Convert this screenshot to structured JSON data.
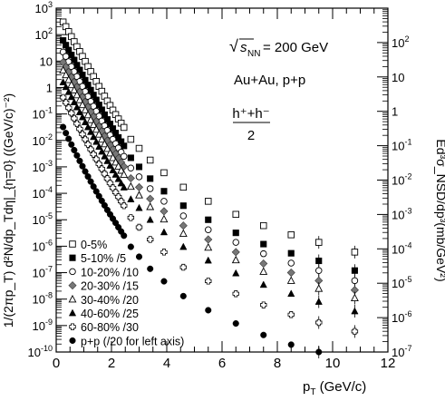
{
  "chart_data": {
    "type": "scatter",
    "x_axis": {
      "label_main": "p",
      "label_sub": "T",
      "label_unit": " (GeV/c)",
      "range": [
        0,
        12
      ],
      "ticks": [
        "0",
        "2",
        "4",
        "6",
        "8",
        "10",
        "12"
      ],
      "scale": "linear"
    },
    "y_axis_left": {
      "label": "1/(2πp_T) d²N/dp_Tdη|_{η=0} ((GeV/c)⁻²)",
      "scale": "log",
      "range": [
        1e-10,
        1000
      ],
      "ticks": [
        {
          "value": 1000,
          "base": "10",
          "exp": "3"
        },
        {
          "value": 100,
          "base": "10",
          "exp": "2"
        },
        {
          "value": 10,
          "base": "10",
          "exp": ""
        },
        {
          "value": 1,
          "base": "1",
          "exp": ""
        },
        {
          "value": 0.1,
          "base": "10",
          "exp": "-1"
        },
        {
          "value": 0.01,
          "base": "10",
          "exp": "-2"
        },
        {
          "value": 0.001,
          "base": "10",
          "exp": "-3"
        },
        {
          "value": 0.0001,
          "base": "10",
          "exp": "-4"
        },
        {
          "value": 1e-05,
          "base": "10",
          "exp": "-5"
        },
        {
          "value": 1e-06,
          "base": "10",
          "exp": "-6"
        },
        {
          "value": 1e-07,
          "base": "10",
          "exp": "-7"
        },
        {
          "value": 1e-08,
          "base": "10",
          "exp": "-8"
        },
        {
          "value": 1e-09,
          "base": "10",
          "exp": "-9"
        },
        {
          "value": 1e-10,
          "base": "10",
          "exp": "-10"
        }
      ]
    },
    "y_axis_right": {
      "label": "Ed³σ_NSD/dp³(mb/GeV²)",
      "scale": "log",
      "range": [
        1e-07,
        1000
      ],
      "ticks": [
        {
          "value": 100,
          "base": "10",
          "exp": "2"
        },
        {
          "value": 10,
          "base": "10",
          "exp": ""
        },
        {
          "value": 1,
          "base": "1",
          "exp": ""
        },
        {
          "value": 0.1,
          "base": "10",
          "exp": "-1"
        },
        {
          "value": 0.01,
          "base": "10",
          "exp": "-2"
        },
        {
          "value": 0.001,
          "base": "10",
          "exp": "-3"
        },
        {
          "value": 0.0001,
          "base": "10",
          "exp": "-4"
        },
        {
          "value": 1e-05,
          "base": "10",
          "exp": "-5"
        },
        {
          "value": 1e-06,
          "base": "10",
          "exp": "-6"
        },
        {
          "value": 1e-07,
          "base": "10",
          "exp": "-7"
        }
      ]
    },
    "annotations": {
      "energy_sqrt": "√",
      "energy_s": "s",
      "energy_sub": "NN",
      "energy_value": " = 200 GeV",
      "systems": "Au+Au, p+p",
      "charge_numerator": "h⁺+h⁻",
      "charge_denominator": "2"
    },
    "legend_position": "bottom-left",
    "series": [
      {
        "name": "0-5%",
        "marker": "open-square",
        "scale_factor": 1,
        "x": [
          0.25,
          0.35,
          0.45,
          0.55,
          0.65,
          0.75,
          0.85,
          0.95,
          1.05,
          1.15,
          1.25,
          1.35,
          1.45,
          1.55,
          1.65,
          1.75,
          1.85,
          1.95,
          2.05,
          2.15,
          2.25,
          2.35,
          2.45,
          2.7,
          3.0,
          3.4,
          3.9,
          4.6,
          5.5,
          6.5,
          7.5,
          8.5,
          9.5,
          10.8
        ],
        "y": [
          300,
          200,
          130,
          84,
          54,
          35,
          23,
          15,
          9.7,
          6.2,
          4.0,
          2.6,
          1.7,
          1.1,
          0.72,
          0.47,
          0.31,
          0.21,
          0.14,
          0.095,
          0.065,
          0.045,
          0.031,
          0.011,
          0.005,
          0.0018,
          0.0006,
          0.00017,
          5e-05,
          1.6e-05,
          6e-06,
          2.7e-06,
          1.4e-06,
          6e-07
        ]
      },
      {
        "name": "5-10% /5",
        "marker": "filled-square",
        "scale_factor": 5,
        "x": [
          0.25,
          0.35,
          0.45,
          0.55,
          0.65,
          0.75,
          0.85,
          0.95,
          1.05,
          1.15,
          1.25,
          1.35,
          1.45,
          1.55,
          1.65,
          1.75,
          1.85,
          1.95,
          2.05,
          2.15,
          2.25,
          2.35,
          2.45,
          2.7,
          3.0,
          3.4,
          3.9,
          4.6,
          5.5,
          6.5,
          7.5,
          8.5,
          9.5,
          10.8
        ],
        "y": [
          60,
          40,
          26,
          17,
          11,
          7,
          4.6,
          3.0,
          1.9,
          1.24,
          0.8,
          0.52,
          0.34,
          0.22,
          0.144,
          0.094,
          0.062,
          0.042,
          0.028,
          0.019,
          0.013,
          0.009,
          0.0062,
          0.0022,
          0.001,
          0.00036,
          0.00012,
          3.4e-05,
          1e-05,
          3.2e-06,
          1.2e-06,
          5.4e-07,
          2.8e-07,
          1.2e-07
        ]
      },
      {
        "name": "10-20% /10",
        "marker": "open-circle",
        "scale_factor": 10,
        "x": [
          0.25,
          0.35,
          0.45,
          0.55,
          0.65,
          0.75,
          0.85,
          0.95,
          1.05,
          1.15,
          1.25,
          1.35,
          1.45,
          1.55,
          1.65,
          1.75,
          1.85,
          1.95,
          2.05,
          2.15,
          2.25,
          2.35,
          2.45,
          2.7,
          3.0,
          3.4,
          3.9,
          4.6,
          5.5,
          6.5,
          7.5,
          8.5,
          9.5,
          10.8
        ],
        "y": [
          22,
          15,
          9.5,
          6.2,
          4.0,
          2.6,
          1.7,
          1.1,
          0.71,
          0.46,
          0.3,
          0.195,
          0.127,
          0.083,
          0.054,
          0.036,
          0.024,
          0.016,
          0.011,
          0.0075,
          0.0052,
          0.0036,
          0.0025,
          0.0009,
          0.00042,
          0.00015,
          5e-05,
          1.4e-05,
          4.2e-06,
          1.4e-06,
          5.2e-07,
          2.3e-07,
          1.2e-07,
          5e-08
        ]
      },
      {
        "name": "20-30% /15",
        "marker": "filled-diamond",
        "scale_factor": 15,
        "x": [
          0.25,
          0.35,
          0.45,
          0.55,
          0.65,
          0.75,
          0.85,
          0.95,
          1.05,
          1.15,
          1.25,
          1.35,
          1.45,
          1.55,
          1.65,
          1.75,
          1.85,
          1.95,
          2.05,
          2.15,
          2.25,
          2.35,
          2.45,
          2.7,
          3.0,
          3.4,
          3.9,
          4.6,
          5.5,
          6.5,
          7.5,
          8.5,
          9.5,
          10.8
        ],
        "y": [
          9,
          6,
          3.9,
          2.5,
          1.6,
          1.05,
          0.68,
          0.44,
          0.285,
          0.185,
          0.12,
          0.079,
          0.052,
          0.034,
          0.022,
          0.0146,
          0.0097,
          0.0066,
          0.0045,
          0.0031,
          0.0021,
          0.00148,
          0.00103,
          0.00037,
          0.00017,
          6.2e-05,
          2.1e-05,
          6e-06,
          1.8e-06,
          6e-07,
          2.2e-07,
          1e-07,
          5e-08,
          2.2e-08
        ]
      },
      {
        "name": "30-40% /20",
        "marker": "open-triangle",
        "scale_factor": 20,
        "x": [
          0.25,
          0.35,
          0.45,
          0.55,
          0.65,
          0.75,
          0.85,
          0.95,
          1.05,
          1.15,
          1.25,
          1.35,
          1.45,
          1.55,
          1.65,
          1.75,
          1.85,
          1.95,
          2.05,
          2.15,
          2.25,
          2.35,
          2.45,
          2.7,
          3.0,
          3.4,
          3.9,
          4.6,
          5.5,
          6.5,
          7.5,
          8.5,
          9.5,
          10.8
        ],
        "y": [
          4.5,
          3.0,
          1.95,
          1.25,
          0.8,
          0.52,
          0.34,
          0.22,
          0.142,
          0.092,
          0.06,
          0.039,
          0.026,
          0.017,
          0.011,
          0.0073,
          0.0049,
          0.0033,
          0.0022,
          0.0015,
          0.00105,
          0.00073,
          0.00051,
          0.00018,
          8.5e-05,
          3.1e-05,
          1.05e-05,
          3e-06,
          9e-07,
          3e-07,
          1.1e-07,
          5e-08,
          2.5e-08,
          1.1e-08
        ]
      },
      {
        "name": "40-60% /25",
        "marker": "filled-triangle",
        "scale_factor": 25,
        "x": [
          0.25,
          0.35,
          0.45,
          0.55,
          0.65,
          0.75,
          0.85,
          0.95,
          1.05,
          1.15,
          1.25,
          1.35,
          1.45,
          1.55,
          1.65,
          1.75,
          1.85,
          1.95,
          2.05,
          2.15,
          2.25,
          2.35,
          2.45,
          2.7,
          3.0,
          3.4,
          3.9,
          4.6,
          5.5,
          6.5,
          7.5,
          8.5,
          9.5,
          10.8
        ],
        "y": [
          1.6,
          1.05,
          0.68,
          0.44,
          0.28,
          0.18,
          0.117,
          0.076,
          0.049,
          0.032,
          0.021,
          0.0136,
          0.0089,
          0.0058,
          0.0038,
          0.0025,
          0.00167,
          0.00112,
          0.00075,
          0.00051,
          0.00035,
          0.00024,
          0.000168,
          6e-05,
          2.8e-05,
          1e-05,
          3.4e-06,
          9.5e-07,
          2.9e-07,
          9.5e-08,
          3.5e-08,
          1.6e-08,
          8e-09,
          3.5e-09
        ]
      },
      {
        "name": "60-80% /30",
        "marker": "open-cross",
        "scale_factor": 30,
        "x": [
          0.25,
          0.35,
          0.45,
          0.55,
          0.65,
          0.75,
          0.85,
          0.95,
          1.05,
          1.15,
          1.25,
          1.35,
          1.45,
          1.55,
          1.65,
          1.75,
          1.85,
          1.95,
          2.05,
          2.15,
          2.25,
          2.35,
          2.45,
          2.7,
          3.0,
          3.4,
          3.9,
          4.6,
          5.5,
          6.5,
          7.5,
          8.5,
          9.5,
          10.8
        ],
        "y": [
          0.42,
          0.27,
          0.172,
          0.108,
          0.068,
          0.043,
          0.027,
          0.0172,
          0.011,
          0.0071,
          0.0046,
          0.003,
          0.00196,
          0.00128,
          0.00084,
          0.00055,
          0.00036,
          0.000242,
          0.000162,
          0.000109,
          7.4e-05,
          5e-05,
          3.4e-05,
          1.2e-05,
          5.2e-06,
          1.8e-06,
          6e-07,
          1.6e-07,
          4.8e-08,
          1.6e-08,
          6e-09,
          2.6e-09,
          1.3e-09,
          6e-10
        ]
      },
      {
        "name": "p+p (/20 for left axis)",
        "marker": "filled-circle",
        "scale_factor": 20,
        "x": [
          0.25,
          0.35,
          0.45,
          0.55,
          0.65,
          0.75,
          0.85,
          0.95,
          1.05,
          1.15,
          1.25,
          1.35,
          1.45,
          1.55,
          1.65,
          1.75,
          1.85,
          1.95,
          2.05,
          2.15,
          2.25,
          2.35,
          2.45,
          2.7,
          3.0,
          3.4,
          3.9,
          4.6,
          5.5,
          6.5,
          7.5,
          8.5,
          9.5
        ],
        "y": [
          0.032,
          0.019,
          0.0115,
          0.007,
          0.0043,
          0.0027,
          0.00168,
          0.00106,
          0.00067,
          0.00043,
          0.000278,
          0.00018,
          0.000118,
          7.8e-05,
          5.2e-05,
          3.5e-05,
          2.35e-05,
          1.6e-05,
          1.1e-05,
          7.6e-06,
          5.2e-06,
          3.6e-06,
          2.5e-06,
          9.5e-07,
          4e-07,
          1.4e-07,
          4.7e-08,
          1.3e-08,
          3.8e-09,
          1.2e-09,
          4.4e-10,
          1.9e-10,
          1e-10
        ]
      }
    ]
  }
}
